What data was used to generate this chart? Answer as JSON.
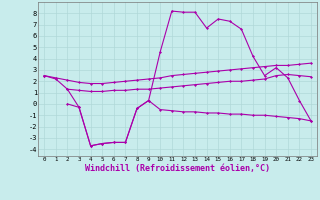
{
  "bg_color": "#c8ecec",
  "grid_color": "#b0d8d8",
  "line_color": "#aa00aa",
  "xlabel": "Windchill (Refroidissement éolien,°C)",
  "xlabel_fontsize": 6,
  "ylabel_ticks": [
    -4,
    -3,
    -2,
    -1,
    0,
    1,
    2,
    3,
    4,
    5,
    6,
    7,
    8
  ],
  "xlim": [
    -0.5,
    23.5
  ],
  "ylim": [
    -4.6,
    9.0
  ],
  "series1_x": [
    0,
    1,
    2,
    3,
    4,
    5,
    6,
    7,
    8,
    9,
    10,
    11,
    12,
    13,
    14,
    15,
    16,
    17,
    18,
    19,
    20,
    21,
    22,
    23
  ],
  "series1_y": [
    2.5,
    2.2,
    1.3,
    -0.3,
    -3.7,
    -3.5,
    -3.4,
    -3.4,
    -0.4,
    0.3,
    4.6,
    8.2,
    8.1,
    8.1,
    6.7,
    7.5,
    7.3,
    6.6,
    4.2,
    2.5,
    3.2,
    2.3,
    0.3,
    -1.5
  ],
  "series2_x": [
    0,
    1,
    2,
    3,
    4,
    5,
    6,
    7,
    8,
    9,
    10,
    11,
    12,
    13,
    14,
    15,
    16,
    17,
    18,
    19,
    20,
    21,
    22,
    23
  ],
  "series2_y": [
    2.5,
    2.3,
    2.1,
    1.9,
    1.8,
    1.8,
    1.9,
    2.0,
    2.1,
    2.2,
    2.3,
    2.5,
    2.6,
    2.7,
    2.8,
    2.9,
    3.0,
    3.1,
    3.2,
    3.3,
    3.4,
    3.4,
    3.5,
    3.6
  ],
  "series3_x": [
    2,
    3,
    4,
    5,
    6,
    7,
    8,
    9,
    10,
    11,
    12,
    13,
    14,
    15,
    16,
    17,
    18,
    19,
    20,
    21,
    22,
    23
  ],
  "series3_y": [
    1.3,
    1.2,
    1.1,
    1.1,
    1.2,
    1.2,
    1.3,
    1.3,
    1.4,
    1.5,
    1.6,
    1.7,
    1.8,
    1.9,
    2.0,
    2.0,
    2.1,
    2.2,
    2.5,
    2.6,
    2.5,
    2.4
  ],
  "series4_x": [
    2,
    3,
    4,
    5,
    6,
    7,
    8,
    9,
    10,
    11,
    12,
    13,
    14,
    15,
    16,
    17,
    18,
    19,
    20,
    21,
    22,
    23
  ],
  "series4_y": [
    0.0,
    -0.3,
    -3.7,
    -3.5,
    -3.4,
    -3.4,
    -0.4,
    0.3,
    -0.5,
    -0.6,
    -0.7,
    -0.7,
    -0.8,
    -0.8,
    -0.9,
    -0.9,
    -1.0,
    -1.0,
    -1.1,
    -1.2,
    -1.3,
    -1.5
  ],
  "marker": "D",
  "markersize": 1.5,
  "linewidth": 0.8
}
